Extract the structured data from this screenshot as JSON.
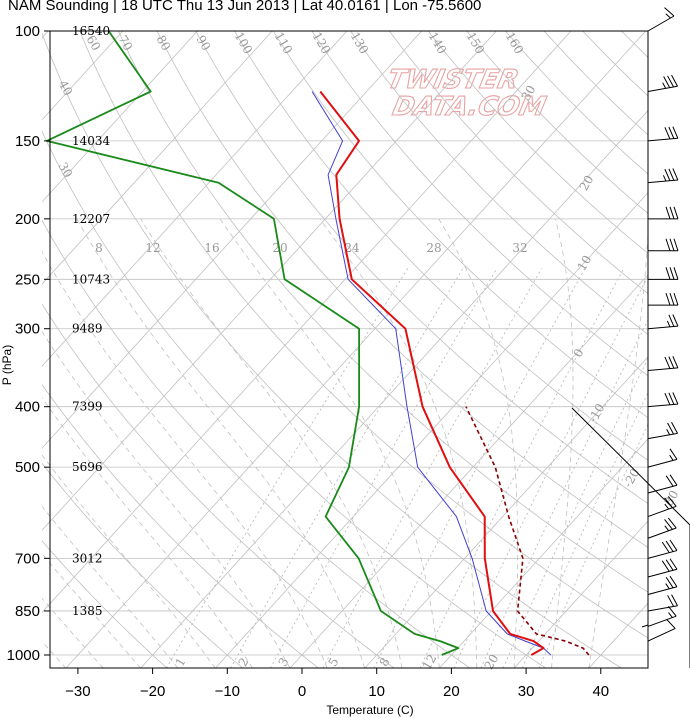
{
  "title": "NAM Sounding | 18 UTC Thu 13 Jun 2013 | Lat 40.0161 | Lon -75.5600",
  "watermark": [
    "TWISTER",
    "DATA.COM"
  ],
  "colors": {
    "temperature": "#e01010",
    "virtual_temperature": "#4040d0",
    "dewpoint": "#1a8a1a",
    "parcel": "#8b0000",
    "grid": "#c0c0c0",
    "mixing_ratio": "#bbbbbb"
  },
  "chart_data": {
    "type": "skew-t",
    "xlabel": "Temperature (C)",
    "ylabel": "P (hPa)",
    "x_ticks": [
      -30,
      -20,
      -10,
      0,
      10,
      20,
      30,
      40
    ],
    "p_ticks": [
      100,
      150,
      200,
      250,
      300,
      400,
      500,
      700,
      850,
      1000
    ],
    "xlim": [
      -35,
      46
    ],
    "plim": [
      100,
      1020
    ],
    "heights_m": [
      {
        "p": 100,
        "z": "16540"
      },
      {
        "p": 150,
        "z": "14034"
      },
      {
        "p": 200,
        "z": "12207"
      },
      {
        "p": 250,
        "z": "10743"
      },
      {
        "p": 300,
        "z": "9489"
      },
      {
        "p": 400,
        "z": "7399"
      },
      {
        "p": 500,
        "z": "5696"
      },
      {
        "p": 700,
        "z": "3012"
      },
      {
        "p": 850,
        "z": "1385"
      }
    ],
    "mixing_ratio_labels": [
      "8",
      "12",
      "16",
      "20",
      "24",
      "28",
      "32"
    ],
    "mixing_ratio_bottom_labels": [
      "1",
      "2",
      "3",
      "5",
      "8",
      "12",
      "20"
    ],
    "dry_adiabat_labels": [
      "60",
      "70",
      "80",
      "90",
      "100",
      "110",
      "120",
      "130",
      "140",
      "150",
      "160"
    ],
    "moist_adiabat_labels": [
      "40",
      "30",
      "20",
      "10",
      "0",
      "-10",
      "-20",
      "-30"
    ],
    "series": [
      {
        "name": "Temperature",
        "x": [
          30.7,
          31.5,
          29.3,
          25.3,
          20.2,
          12.7,
          7.6,
          -3.1,
          -14.1,
          -25.9,
          -39.1,
          -48.1,
          -53.9,
          -55.0,
          -66.2
        ],
        "p": [
          1000,
          975,
          950,
          925,
          850,
          700,
          600,
          500,
          400,
          300,
          250,
          200,
          170,
          150,
          125
        ]
      },
      {
        "name": "Virtual temperature",
        "x": [
          33.3,
          31.5,
          28.2,
          24.9,
          19.3,
          11.0,
          3.8,
          -7.4,
          -16.2,
          -27.2,
          -39.6,
          -48.6,
          -55.0,
          -57.2,
          -67.3
        ],
        "p": [
          1000,
          975,
          950,
          925,
          850,
          700,
          600,
          500,
          400,
          300,
          250,
          200,
          170,
          150,
          125
        ]
      },
      {
        "name": "Dewpoint",
        "x": [
          18.7,
          20.1,
          16.8,
          12.5,
          5.2,
          -4.2,
          -13.7,
          -16.6,
          -22.6,
          -32.1,
          -48.1,
          -56.9,
          -68.7,
          -96.8,
          -88.9,
          -101.9
        ],
        "p": [
          1000,
          975,
          950,
          925,
          850,
          700,
          600,
          500,
          400,
          300,
          250,
          200,
          175,
          150,
          125,
          100
        ]
      },
      {
        "name": "Parcel",
        "x": [
          38.4,
          36.8,
          33.6,
          28.8,
          23.5,
          17.8,
          10.8,
          3.0,
          -8.3
        ],
        "p": [
          1000,
          975,
          950,
          925,
          850,
          700,
          600,
          500,
          400
        ]
      }
    ],
    "wind_barbs": [
      {
        "p": 1000,
        "dir": 180,
        "kt": 5
      },
      {
        "p": 950,
        "dir": 245,
        "kt": 10
      },
      {
        "p": 900,
        "dir": 250,
        "kt": 15
      },
      {
        "p": 850,
        "dir": 260,
        "kt": 20
      },
      {
        "p": 800,
        "dir": 255,
        "kt": 25
      },
      {
        "p": 750,
        "dir": 255,
        "kt": 30
      },
      {
        "p": 700,
        "dir": 255,
        "kt": 30
      },
      {
        "p": 650,
        "dir": 250,
        "kt": 25
      },
      {
        "p": 600,
        "dir": 250,
        "kt": 25
      },
      {
        "p": 550,
        "dir": 255,
        "kt": 20
      },
      {
        "p": 500,
        "dir": 255,
        "kt": 15
      },
      {
        "p": 450,
        "dir": 260,
        "kt": 25
      },
      {
        "p": 400,
        "dir": 265,
        "kt": 30
      },
      {
        "p": 350,
        "dir": 265,
        "kt": 30
      },
      {
        "p": 300,
        "dir": 265,
        "kt": 25
      },
      {
        "p": 275,
        "dir": 270,
        "kt": 30
      },
      {
        "p": 250,
        "dir": 270,
        "kt": 30
      },
      {
        "p": 225,
        "dir": 270,
        "kt": 30
      },
      {
        "p": 200,
        "dir": 270,
        "kt": 30
      },
      {
        "p": 175,
        "dir": 265,
        "kt": 35
      },
      {
        "p": 150,
        "dir": 265,
        "kt": 30
      },
      {
        "p": 125,
        "dir": 260,
        "kt": 35
      },
      {
        "p": 100,
        "dir": 240,
        "kt": 15
      }
    ],
    "hodograph_labels": [
      "30"
    ]
  }
}
